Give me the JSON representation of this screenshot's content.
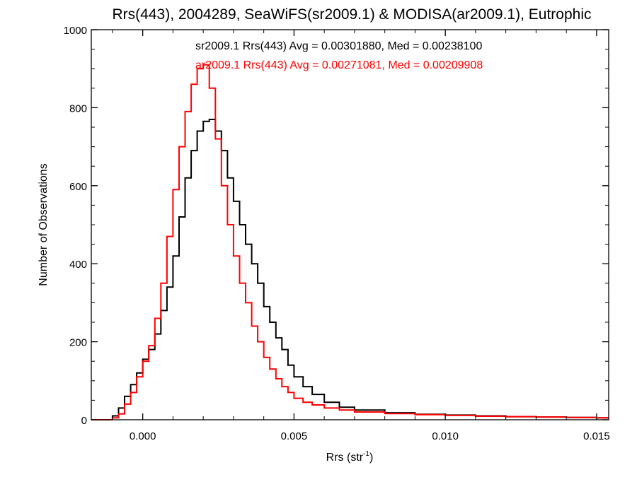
{
  "chart_data": {
    "type": "line",
    "title": "Rrs(443), 2004289, SeaWiFS(sr2009.1) & MODISA(ar2009.1), Eutrophic",
    "xlabel": "Rrs (str",
    "xlabel_sup": "-1",
    "xlabel_close": ")",
    "ylabel": "Number of Observations",
    "xlim": [
      -0.0017,
      0.0154
    ],
    "ylim": [
      0,
      1000
    ],
    "x_ticks": [
      0.0,
      0.005,
      0.01,
      0.015
    ],
    "x_tick_labels": [
      "0.000",
      "0.005",
      "0.010",
      "0.015"
    ],
    "y_ticks": [
      0,
      200,
      400,
      600,
      800,
      1000
    ],
    "y_tick_labels": [
      "0",
      "200",
      "400",
      "600",
      "800",
      "1000"
    ],
    "grid": false,
    "annotations": [
      {
        "text": "sr2009.1 Rrs(443) Avg = 0.00301880, Med = 0.00238100",
        "color": "#000000"
      },
      {
        "text": "ar2009.1 Rrs(443) Avg = 0.00271081, Med = 0.00209908",
        "color": "#ff0000"
      }
    ],
    "series": [
      {
        "color": "#000000",
        "x": [
          -0.0017,
          -0.0012,
          -0.001,
          -0.0008,
          -0.0006,
          -0.0004,
          -0.0002,
          0.0,
          0.0002,
          0.0004,
          0.0006,
          0.0008,
          0.001,
          0.0012,
          0.0014,
          0.0016,
          0.0018,
          0.002,
          0.0022,
          0.0024,
          0.0026,
          0.0028,
          0.003,
          0.0032,
          0.0034,
          0.0036,
          0.0038,
          0.004,
          0.0042,
          0.0044,
          0.0046,
          0.0048,
          0.005,
          0.0053,
          0.0056,
          0.006,
          0.0065,
          0.007,
          0.008,
          0.009,
          0.01,
          0.011,
          0.012,
          0.013,
          0.014,
          0.015,
          0.0154
        ],
        "y": [
          0,
          0,
          10,
          30,
          60,
          90,
          120,
          155,
          180,
          220,
          280,
          340,
          420,
          520,
          620,
          690,
          740,
          765,
          770,
          740,
          690,
          620,
          560,
          500,
          450,
          400,
          350,
          290,
          250,
          210,
          180,
          140,
          110,
          85,
          65,
          45,
          32,
          25,
          18,
          14,
          12,
          10,
          8,
          7,
          6,
          5,
          5
        ]
      },
      {
        "color": "#ff0000",
        "x": [
          -0.0017,
          -0.0012,
          -0.001,
          -0.0008,
          -0.0006,
          -0.0004,
          -0.0002,
          0.0,
          0.0002,
          0.0004,
          0.0006,
          0.0008,
          0.001,
          0.0012,
          0.0014,
          0.0016,
          0.0018,
          0.002,
          0.0022,
          0.0024,
          0.0026,
          0.0028,
          0.003,
          0.0032,
          0.0034,
          0.0036,
          0.0038,
          0.004,
          0.0042,
          0.0044,
          0.0046,
          0.0048,
          0.005,
          0.0053,
          0.0056,
          0.006,
          0.0065,
          0.007,
          0.008,
          0.009,
          0.01,
          0.011,
          0.012,
          0.013,
          0.014,
          0.015,
          0.0154
        ],
        "y": [
          0,
          0,
          5,
          15,
          40,
          70,
          110,
          150,
          190,
          260,
          350,
          470,
          590,
          700,
          790,
          860,
          900,
          910,
          850,
          720,
          600,
          500,
          420,
          350,
          300,
          240,
          200,
          160,
          130,
          105,
          85,
          70,
          55,
          45,
          38,
          30,
          25,
          20,
          16,
          13,
          11,
          9,
          8,
          7,
          6,
          5,
          5
        ]
      }
    ]
  }
}
